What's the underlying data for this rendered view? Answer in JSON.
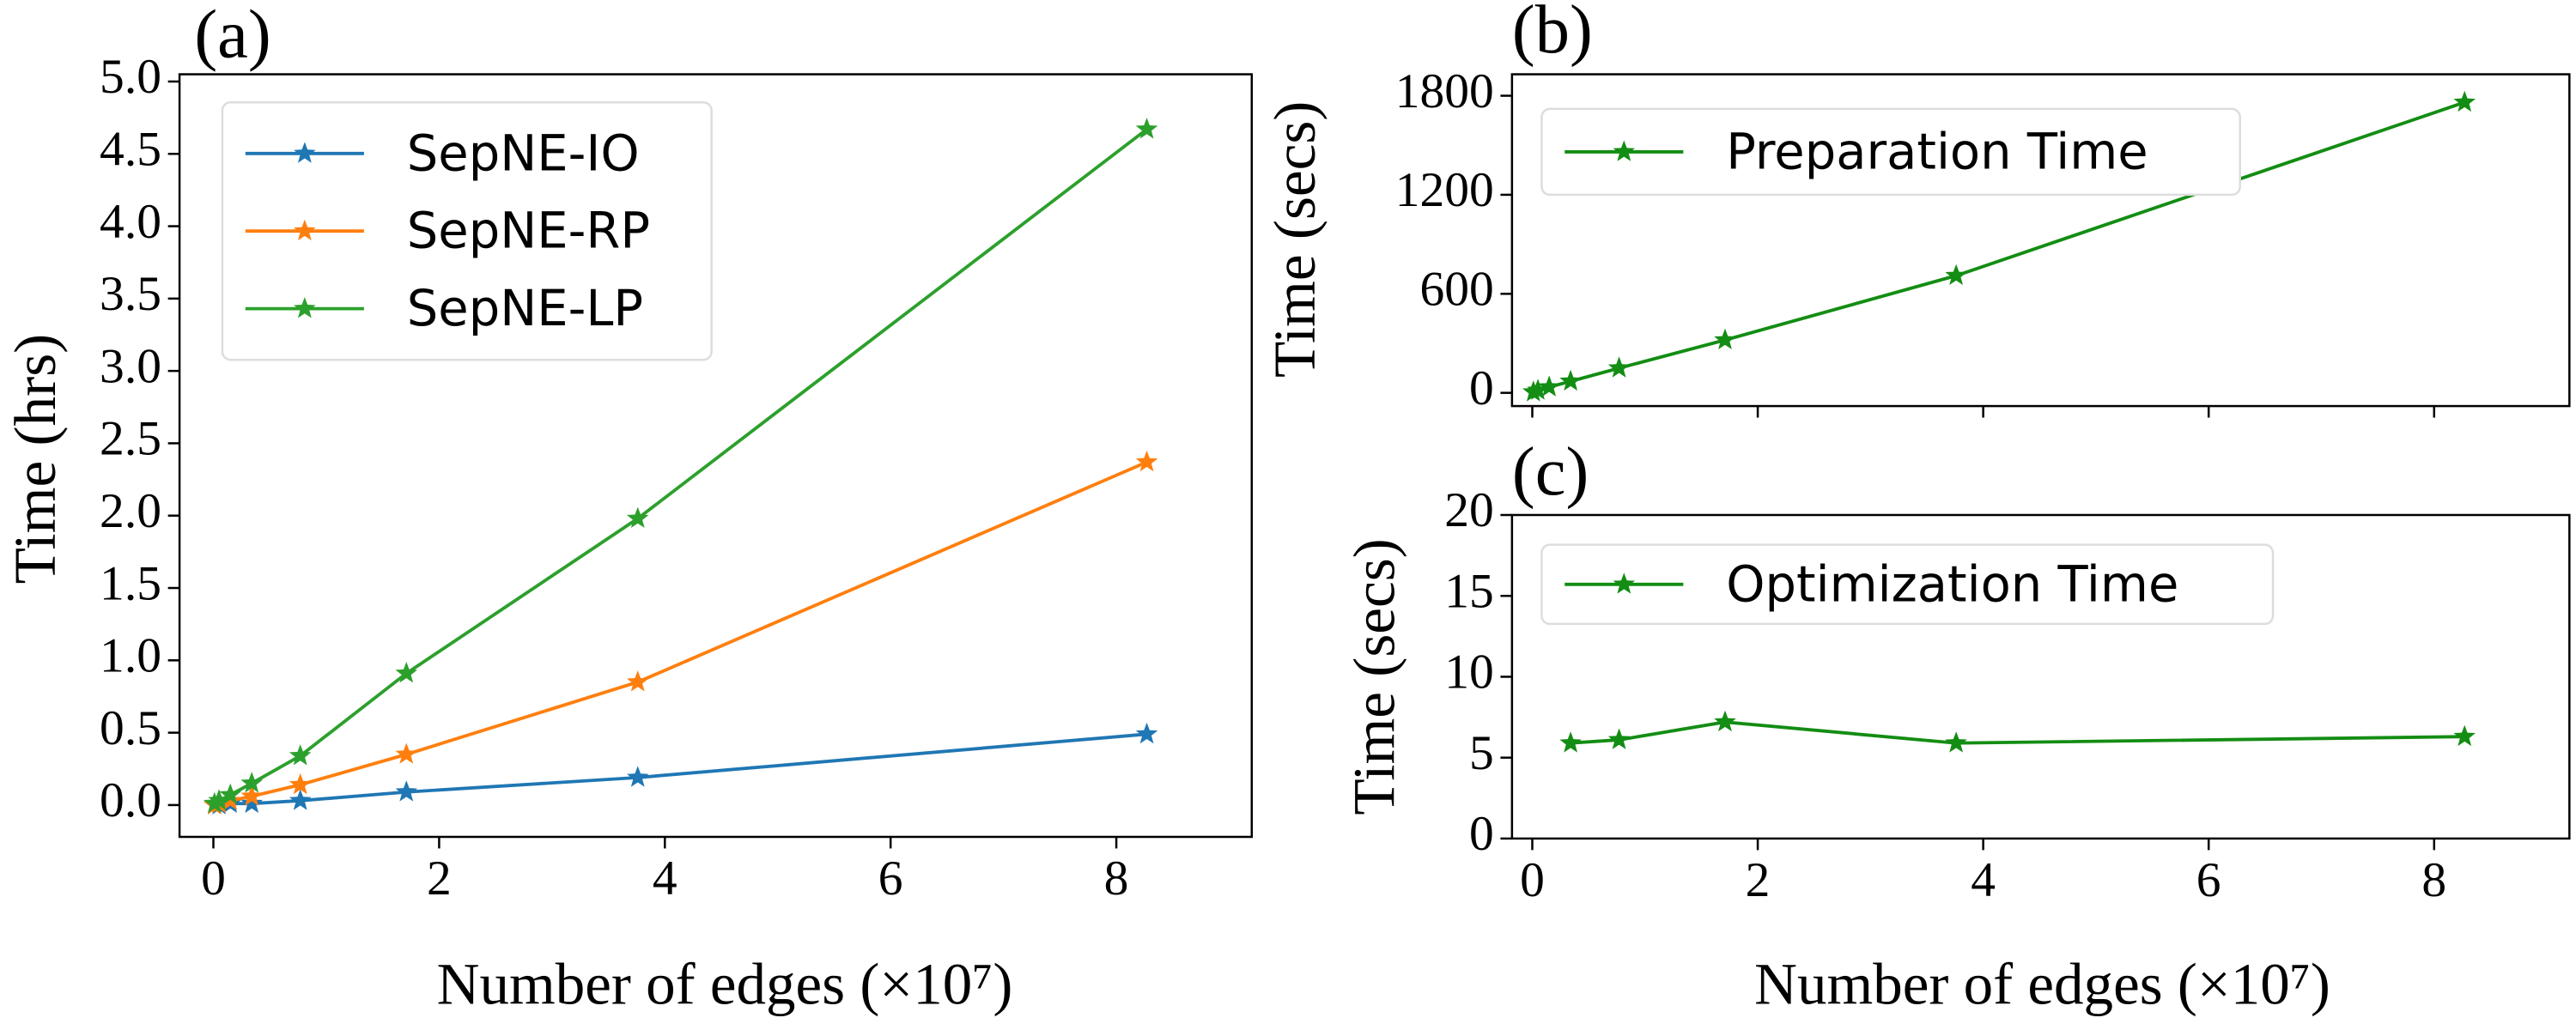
{
  "chart_data": [
    {
      "type": "line",
      "panel_label": "(a)",
      "xlabel": "Number of edges (×10⁷)",
      "ylabel": "Time (hrs)",
      "x": [
        0.01,
        0.05,
        0.15,
        0.34,
        0.77,
        1.71,
        3.76,
        8.27
      ],
      "series": [
        {
          "name": "SepNE-IO",
          "color": "#1f77b4",
          "values": [
            0.0,
            0.0,
            0.01,
            0.01,
            0.03,
            0.09,
            0.19,
            0.49
          ]
        },
        {
          "name": "SepNE-RP",
          "color": "#ff7f0e",
          "values": [
            0.0,
            0.01,
            0.03,
            0.06,
            0.14,
            0.35,
            0.85,
            2.37
          ]
        },
        {
          "name": "SepNE-LP",
          "color": "#2ca02c",
          "values": [
            0.01,
            0.03,
            0.07,
            0.15,
            0.34,
            0.91,
            1.98,
            4.67
          ]
        }
      ],
      "xlim": [
        -0.3,
        9.2
      ],
      "xticks": [
        0,
        2,
        4,
        6,
        8
      ],
      "ylim": [
        -0.22,
        5.05
      ],
      "yticks": [
        {
          "value": 0,
          "label": "0.0"
        },
        0.5,
        {
          "value": 1,
          "label": "1.0"
        },
        1.5,
        {
          "value": 2,
          "label": "2.0"
        },
        2.5,
        {
          "value": 3,
          "label": "3.0"
        },
        3.5,
        {
          "value": 4,
          "label": "4.0"
        },
        4.5,
        {
          "value": 5,
          "label": "5.0"
        }
      ],
      "legend": "upper left",
      "marker": "star"
    },
    {
      "type": "line",
      "panel_label": "(b)",
      "ylabel": "Time (secs)",
      "x": [
        0.01,
        0.05,
        0.15,
        0.34,
        0.77,
        1.71,
        3.76,
        8.27
      ],
      "series": [
        {
          "name": "Preparation Time",
          "color": "#138d13",
          "values": [
            5,
            15,
            35,
            70,
            150,
            320,
            710,
            1760
          ]
        }
      ],
      "xlim": [
        -0.18,
        9.2
      ],
      "xticks": [
        0,
        2,
        4,
        6,
        8
      ],
      "show_xtick_labels": false,
      "ylim": [
        -80,
        1930
      ],
      "yticks": [
        0,
        600,
        1200,
        1800
      ],
      "legend": "upper left",
      "marker": "star"
    },
    {
      "type": "line",
      "panel_label": "(c)",
      "xlabel": "Number of edges (×10⁷)",
      "ylabel": "Time (secs)",
      "x": [
        0.34,
        0.77,
        1.71,
        3.76,
        8.27
      ],
      "series": [
        {
          "name": "Optimization Time",
          "color": "#138d13",
          "values": [
            5.9,
            6.1,
            7.2,
            5.9,
            6.3
          ]
        }
      ],
      "xlim": [
        -0.18,
        9.2
      ],
      "xticks": [
        0,
        2,
        4,
        6,
        8
      ],
      "ylim": [
        0,
        20
      ],
      "yticks": [
        0,
        5,
        10,
        15,
        20
      ],
      "legend": "upper left",
      "marker": "star"
    }
  ]
}
